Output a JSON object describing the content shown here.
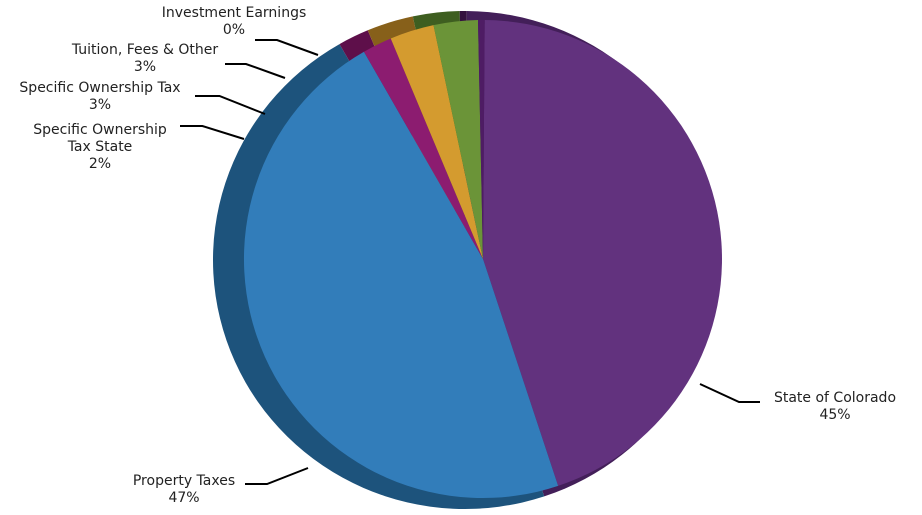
{
  "chart_data": {
    "type": "pie",
    "style": "3d",
    "slices": [
      {
        "name": "State of Colorado",
        "lines": [
          "State of Colorado"
        ],
        "value": 45,
        "label": "45%",
        "color": "#62327E",
        "side_color": "#431F59"
      },
      {
        "name": "Property Taxes",
        "lines": [
          "Property Taxes"
        ],
        "value": 47,
        "label": "47%",
        "color": "#327DBA",
        "side_color": "#1D537C"
      },
      {
        "name": "Specific Ownership Tax State",
        "lines": [
          "Specific Ownership",
          "Tax State"
        ],
        "value": 2,
        "label": "2%",
        "color": "#8C1C70",
        "side_color": "#5E0F4A"
      },
      {
        "name": "Specific Ownership Tax",
        "lines": [
          "Specific Ownership Tax"
        ],
        "value": 3,
        "label": "3%",
        "color": "#D49B2F",
        "side_color": "#87601A"
      },
      {
        "name": "Tuition, Fees & Other",
        "lines": [
          "Tuition, Fees & Other"
        ],
        "value": 3,
        "label": "3%",
        "color": "#6B9438",
        "side_color": "#3E5E20"
      },
      {
        "name": "Investment Earnings",
        "lines": [
          "Investment Earnings"
        ],
        "value": 0,
        "label": "0%",
        "color": "#4E1C64",
        "side_color": "#34113F"
      }
    ],
    "legend": "none"
  }
}
